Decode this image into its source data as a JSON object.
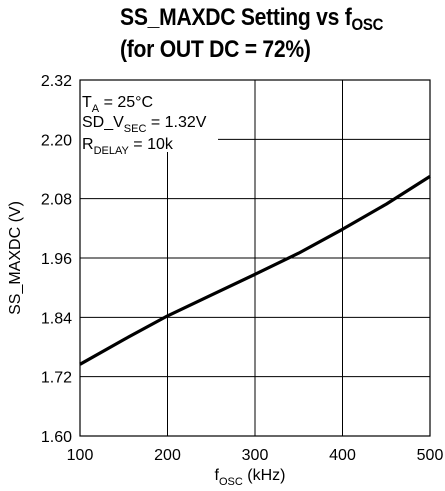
{
  "chart_data": {
    "type": "line",
    "title_line1": "SS_MAXDC Setting vs f",
    "title_line1_sub": "OSC",
    "title_line2": "(for OUT DC = 72%)",
    "xlabel_main": "f",
    "xlabel_sub": "OSC",
    "xlabel_unit": " (kHz)",
    "ylabel": "SS_MAXDC (V)",
    "xlim": [
      100,
      500
    ],
    "ylim": [
      1.6,
      2.32
    ],
    "x_ticks": [
      "100",
      "200",
      "300",
      "400",
      "500"
    ],
    "y_ticks": [
      "2.32",
      "2.20",
      "2.08",
      "1.96",
      "1.84",
      "1.72",
      "1.60"
    ],
    "grid": true,
    "annotations": [
      {
        "main": "T",
        "sub": "A",
        "rest": " = 25°C"
      },
      {
        "main": "SD_V",
        "sub": "SEC",
        "rest": " = 1.32V"
      },
      {
        "main": "R",
        "sub": "DELAY",
        "rest": " = 10k"
      }
    ],
    "series": [
      {
        "x": [
          100,
          150,
          200,
          250,
          300,
          350,
          400,
          450,
          500
        ],
        "y": [
          1.745,
          1.795,
          1.843,
          1.885,
          1.927,
          1.97,
          2.018,
          2.069,
          2.125
        ]
      }
    ]
  }
}
